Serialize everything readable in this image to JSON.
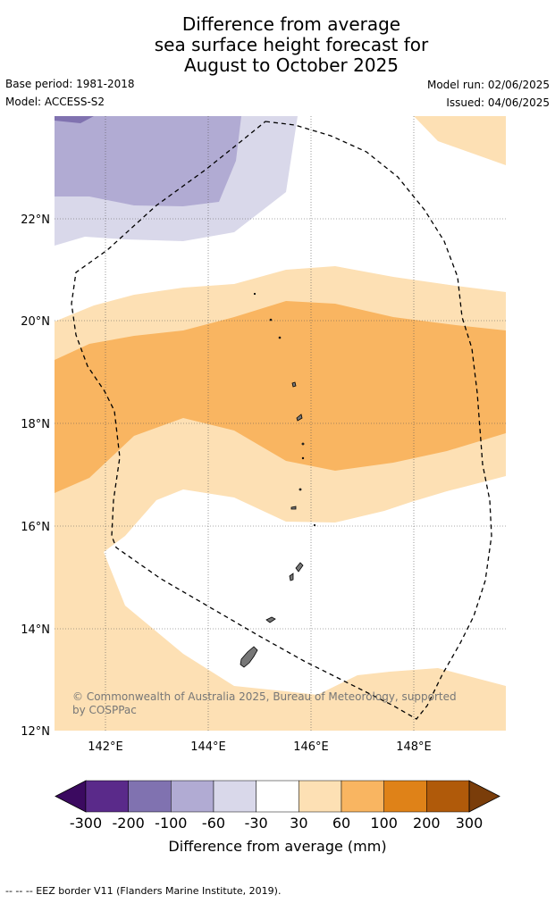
{
  "title": {
    "line1": "Difference from average",
    "line2": "sea surface height forecast for",
    "line3": "August to October 2025"
  },
  "meta": {
    "base_period": "Base period: 1981-2018",
    "model": "Model: ACCESS-S2",
    "model_run": "Model run: 02/06/2025",
    "issued": "Issued: 04/06/2025"
  },
  "map": {
    "lon_ticks": [
      "142°E",
      "144°E",
      "146°E",
      "148°E"
    ],
    "lat_ticks": [
      "22°N",
      "20°N",
      "18°N",
      "16°N",
      "14°N",
      "12°N"
    ],
    "copyright": "© Commonwealth of Australia 2025, Bureau of Meteorology, supported by COSPPac"
  },
  "colorbar": {
    "tick_labels": [
      "-300",
      "-200",
      "-100",
      "-60",
      "-30",
      "30",
      "60",
      "100",
      "200",
      "300"
    ],
    "label": "Difference from average (mm)",
    "colors": [
      "#3b0a60",
      "#5a2a8a",
      "#8072b0",
      "#b1abd3",
      "#d9d8ea",
      "#ffffff",
      "#fde0b4",
      "#f9b561",
      "#df8218",
      "#b05a0a",
      "#7a3d0a"
    ]
  },
  "footer": "--  --  -- EEZ border V11 (Flanders Marine Institute, 2019)."
}
